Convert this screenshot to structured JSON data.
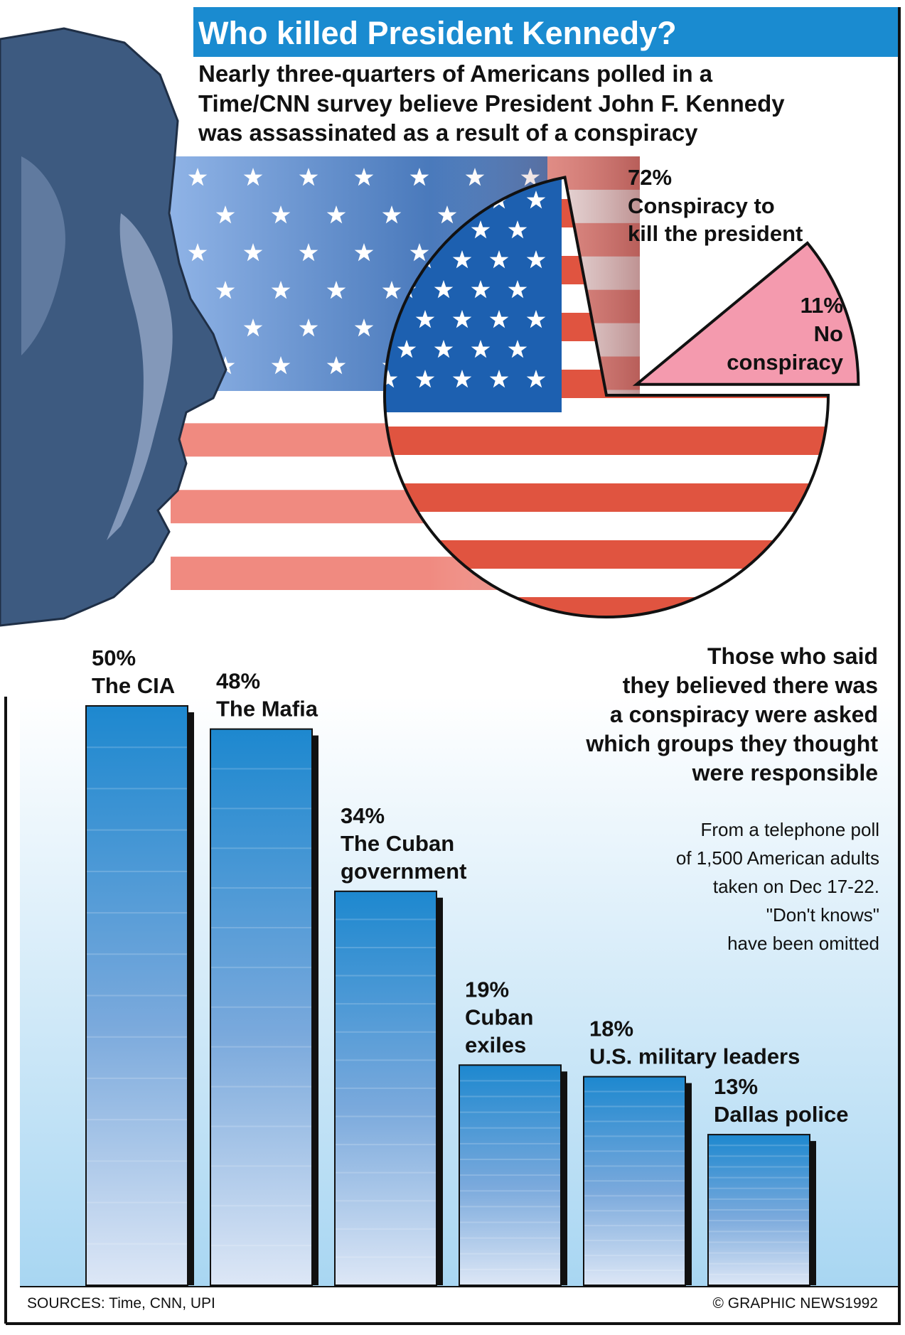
{
  "title": "Who killed President Kennedy?",
  "subtitle_lines": [
    "Nearly three-quarters of Americans polled in a",
    "Time/CNN survey believe President John F. Kennedy",
    "was assassinated as a result of a conspiracy"
  ],
  "question_lines": [
    "Those who said",
    "they believed there was",
    "a conspiracy were asked",
    "which groups they thought",
    "were responsible"
  ],
  "note_lines": [
    "From a telephone poll",
    "of 1,500 American adults",
    "taken on Dec 17-22.",
    "\"Don't knows\"",
    "have been omitted"
  ],
  "sources": "SOURCES: Time, CNN, UPI",
  "credit": "© GRAPHIC NEWS1992",
  "colors": {
    "header_blue": "#1a8bd0",
    "face_navy": "#3d5a80",
    "flag_red": "#e05440",
    "flag_blue": "#1d60b0",
    "no_conspiracy_pink": "#f49aae",
    "bar_top": "#1d88cf",
    "bar_bottom": "#dde7f6",
    "bg_light_blue": "#a8d6f2"
  },
  "chart_data": [
    {
      "type": "pie",
      "slices": [
        {
          "label_lines": [
            "Conspiracy to",
            "kill the president"
          ],
          "pct_label": "72%",
          "value": 72
        },
        {
          "label_lines": [
            "No",
            "conspiracy"
          ],
          "pct_label": "11%",
          "value": 11
        }
      ]
    },
    {
      "type": "bar",
      "categories": [
        [
          "The CIA"
        ],
        [
          "The Mafia"
        ],
        [
          "The Cuban",
          "government"
        ],
        [
          "Cuban",
          "exiles"
        ],
        [
          "U.S. military leaders"
        ],
        [
          "Dallas police"
        ]
      ],
      "pct_labels": [
        "50%",
        "48%",
        "34%",
        "19%",
        "18%",
        "13%"
      ],
      "values": [
        50,
        48,
        34,
        19,
        18,
        13
      ],
      "ylim": [
        0,
        50
      ]
    }
  ]
}
